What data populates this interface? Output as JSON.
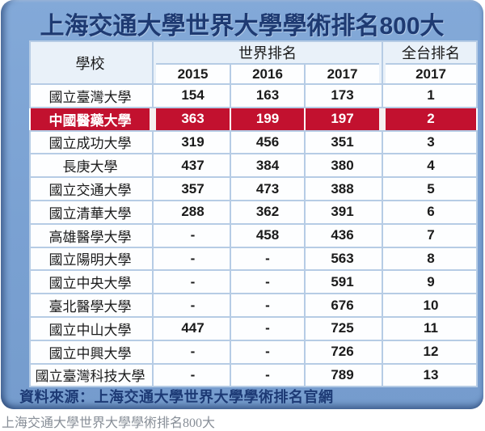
{
  "page": {
    "caption": "上海交通大學世界大學學術排名800大"
  },
  "table": {
    "school_header": "學校",
    "world_group_label": "世界排名",
    "taiwan_group_label": "全台排名",
    "world_years": [
      "2015",
      "2016",
      "2017"
    ],
    "taiwan_year": "2017"
  },
  "chart_data": {
    "type": "table",
    "title": "上海交通大學世界大學學術排名800大",
    "columns": [
      "學校",
      "世界排名 2015",
      "世界排名 2016",
      "世界排名 2017",
      "全台排名 2017"
    ],
    "rows": [
      [
        "國立臺灣大學",
        "154",
        "163",
        "173",
        "1"
      ],
      [
        "中國醫藥大學",
        "363",
        "199",
        "197",
        "2"
      ],
      [
        "國立成功大學",
        "319",
        "456",
        "351",
        "3"
      ],
      [
        "長庚大學",
        "437",
        "384",
        "380",
        "4"
      ],
      [
        "國立交通大學",
        "357",
        "473",
        "388",
        "5"
      ],
      [
        "國立清華大學",
        "288",
        "362",
        "391",
        "6"
      ],
      [
        "高雄醫學大學",
        "-",
        "458",
        "436",
        "7"
      ],
      [
        "國立陽明大學",
        "-",
        "-",
        "563",
        "8"
      ],
      [
        "國立中央大學",
        "-",
        "-",
        "591",
        "9"
      ],
      [
        "臺北醫學大學",
        "-",
        "-",
        "676",
        "10"
      ],
      [
        "國立中山大學",
        "447",
        "-",
        "725",
        "11"
      ],
      [
        "國立中興大學",
        "-",
        "-",
        "726",
        "12"
      ],
      [
        "國立臺灣科技大學",
        "-",
        "-",
        "789",
        "13"
      ]
    ],
    "highlight_index": 1,
    "highlighted_school": "中國醫藥大學",
    "source_note": "資料來源：上海交通大學世界大學學術排名官網"
  },
  "colors": {
    "card_blue": "#7BA1D2",
    "title_navy": "#1E3A72",
    "highlight_red": "#C2112F",
    "table_border": "#B6CCE5",
    "header_tint": "#E9F1F9",
    "caption_gray": "#878E97"
  }
}
